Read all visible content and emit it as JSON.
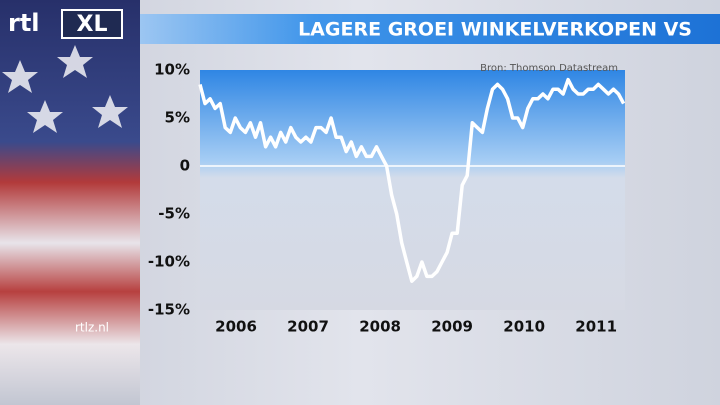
{
  "branding": {
    "logo_left": "rtl",
    "logo_right": "XL",
    "site": "rtlz.nl"
  },
  "chart_data": {
    "type": "line",
    "title": "LAGERE GROEI WINKELVERKOPEN VS",
    "source": "Bron: Thomson Datastream",
    "x": [
      2006,
      2006.07,
      2006.14,
      2006.21,
      2006.28,
      2006.35,
      2006.42,
      2006.49,
      2006.56,
      2006.63,
      2006.7,
      2006.77,
      2006.84,
      2006.91,
      2006.98,
      2007.05,
      2007.12,
      2007.19,
      2007.26,
      2007.33,
      2007.4,
      2007.47,
      2007.54,
      2007.61,
      2007.68,
      2007.75,
      2007.82,
      2007.89,
      2007.96,
      2008.03,
      2008.1,
      2008.17,
      2008.24,
      2008.31,
      2008.38,
      2008.45,
      2008.52,
      2008.59,
      2008.66,
      2008.73,
      2008.8,
      2008.87,
      2008.94,
      2009.01,
      2009.08,
      2009.15,
      2009.22,
      2009.29,
      2009.36,
      2009.43,
      2009.5,
      2009.57,
      2009.64,
      2009.71,
      2009.78,
      2009.85,
      2009.92,
      2009.99,
      2010.06,
      2010.13,
      2010.2,
      2010.27,
      2010.34,
      2010.41,
      2010.48,
      2010.55,
      2010.62,
      2010.69,
      2010.76,
      2010.83,
      2010.9,
      2010.97,
      2011.04,
      2011.11,
      2011.18,
      2011.25,
      2011.32,
      2011.39,
      2011.46,
      2011.53,
      2011.6,
      2011.67,
      2011.74,
      2011.81,
      2011.88
    ],
    "series": [
      {
        "color": "#ffffff",
        "values": [
          8.5,
          6.5,
          7,
          6,
          6.5,
          4,
          3.5,
          5,
          4,
          3.5,
          4.5,
          3,
          4.5,
          2,
          3,
          2,
          3.5,
          2.5,
          4,
          3,
          2.5,
          3,
          2.5,
          4,
          4,
          3.5,
          5,
          3,
          3,
          1.5,
          2.5,
          1,
          2,
          1,
          1,
          2,
          1,
          0,
          -3,
          -5,
          -8,
          -10,
          -12,
          -11.5,
          -10,
          -11.5,
          -11.5,
          -11,
          -10,
          -9,
          -7,
          -7,
          -2,
          -1,
          4.5,
          4,
          3.5,
          6,
          8,
          8.5,
          8,
          7,
          5,
          5,
          4,
          6,
          7,
          7,
          7.5,
          7,
          8,
          8,
          7.5,
          9,
          8,
          7.5,
          7.5,
          8,
          8,
          8.5,
          8,
          7.5,
          8,
          7.5,
          6.5
        ]
      }
    ],
    "xlim": [
      2006,
      2011.9
    ],
    "xticks": [
      {
        "value": 2006.5,
        "label": "2006"
      },
      {
        "value": 2007.5,
        "label": "2007"
      },
      {
        "value": 2008.5,
        "label": "2008"
      },
      {
        "value": 2009.5,
        "label": "2009"
      },
      {
        "value": 2010.5,
        "label": "2010"
      },
      {
        "value": 2011.5,
        "label": "2011"
      }
    ],
    "ylim": [
      -15,
      10
    ],
    "yticks": [
      {
        "value": 10,
        "label": "10%"
      },
      {
        "value": 5,
        "label": "5%"
      },
      0,
      {
        "value": -5,
        "label": "-5%"
      },
      {
        "value": -10,
        "label": "-10%"
      },
      {
        "value": -15,
        "label": "-15%"
      }
    ],
    "zero_line": true
  }
}
